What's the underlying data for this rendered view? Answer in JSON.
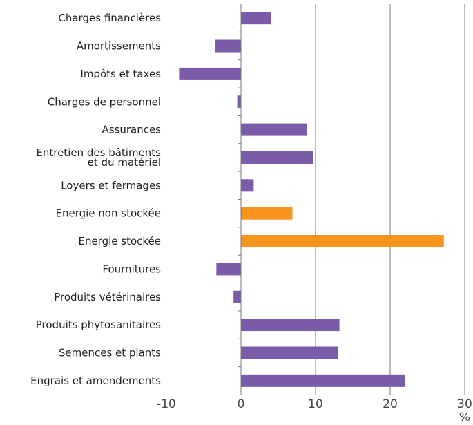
{
  "chart_data": {
    "type": "barh",
    "categories": [
      [
        "Charges financières"
      ],
      [
        "Amortissements"
      ],
      [
        "Impôts et taxes"
      ],
      [
        "Charges de personnel"
      ],
      [
        "Assurances"
      ],
      [
        "Entretien des bâtiments",
        "et du matériel"
      ],
      [
        "Loyers et fermages"
      ],
      [
        "Energie non stockée"
      ],
      [
        "Energie stockée"
      ],
      [
        "Fournitures"
      ],
      [
        "Produits vétérinaires"
      ],
      [
        "Produits phytosanitaires"
      ],
      [
        "Semences et plants"
      ],
      [
        "Engrais et amendements"
      ]
    ],
    "values": [
      4.0,
      -3.5,
      -8.3,
      -0.5,
      8.8,
      9.7,
      1.7,
      6.9,
      27.2,
      -3.3,
      -1.0,
      13.2,
      13.0,
      22.0
    ],
    "colors": [
      "#7a5ca8",
      "#7a5ca8",
      "#7a5ca8",
      "#7a5ca8",
      "#7a5ca8",
      "#7a5ca8",
      "#7a5ca8",
      "#f7941d",
      "#f7941d",
      "#7a5ca8",
      "#7a5ca8",
      "#7a5ca8",
      "#7a5ca8",
      "#7a5ca8"
    ],
    "xlim": [
      -10,
      30
    ],
    "xticks": [
      -10,
      0,
      10,
      20,
      30
    ],
    "x_unit": "%",
    "grid": true
  }
}
